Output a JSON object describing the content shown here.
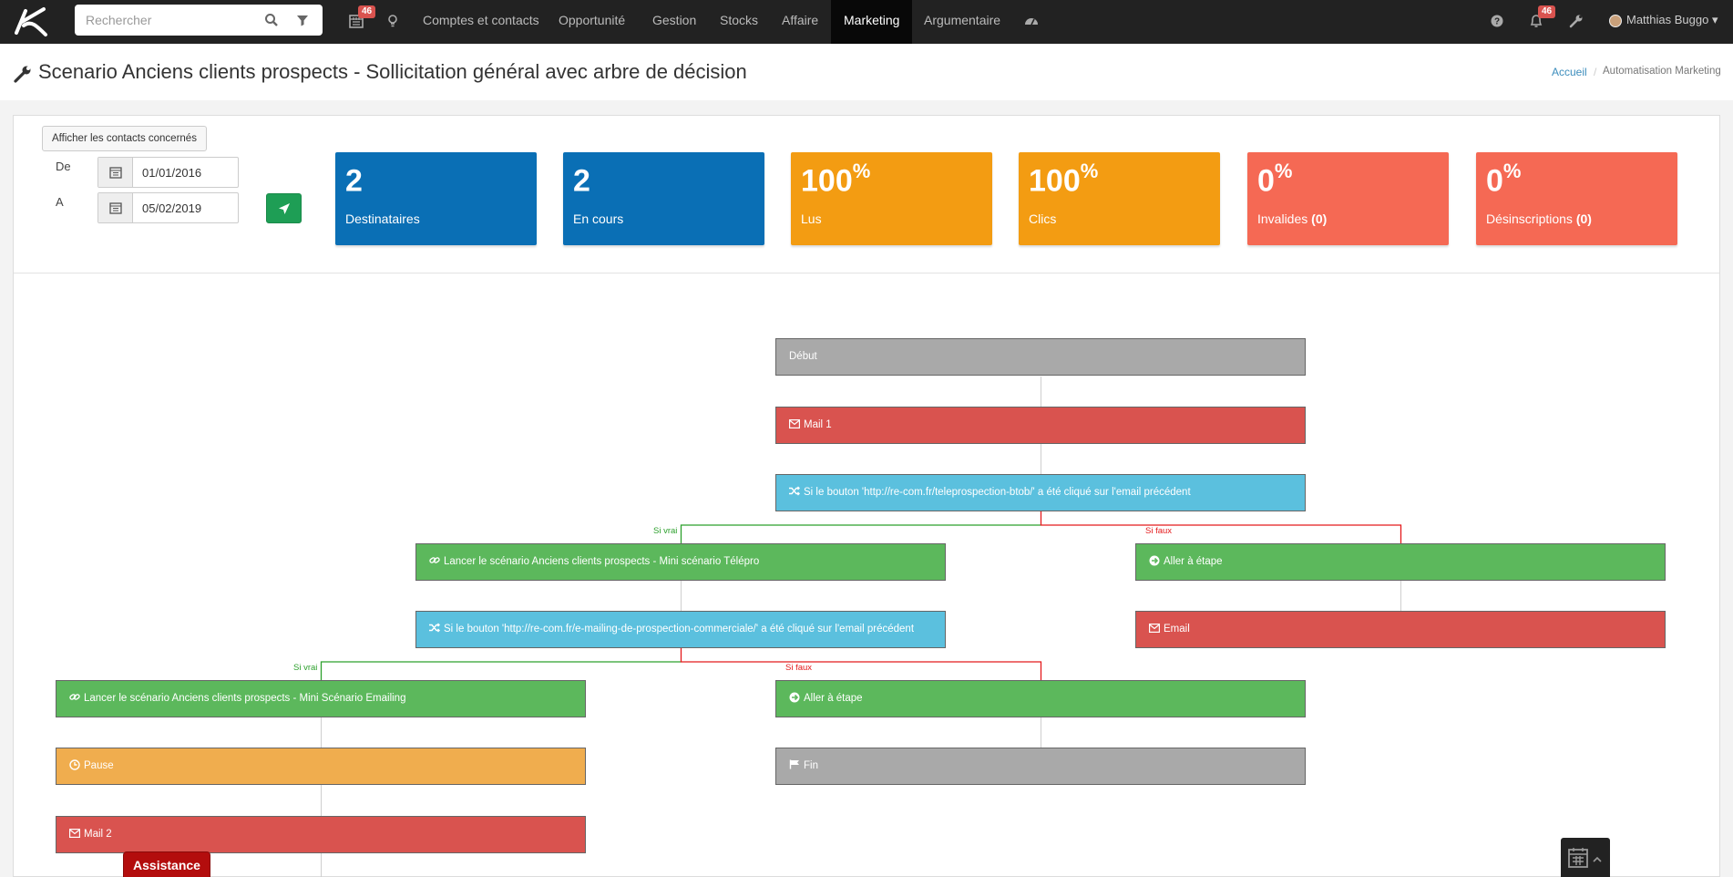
{
  "navbar": {
    "search_placeholder": "Rechercher",
    "calendar_badge": "46",
    "notifications_badge": "46",
    "menu": [
      "Comptes et contacts",
      "Opportunité",
      "Gestion",
      "Stocks",
      "Affaire",
      "Marketing",
      "Argumentaire"
    ],
    "active_menu": "Marketing",
    "user_name": "Matthias Buggo"
  },
  "header": {
    "title": "Scenario Anciens clients prospects - Sollicitation général avec arbre de décision",
    "breadcrumb": [
      "Accueil",
      "Automatisation Marketing"
    ]
  },
  "filters": {
    "show_contacts_label": "Afficher les contacts concernés",
    "from_label": "De",
    "to_label": "A",
    "from_date": "01/01/2016",
    "to_date": "05/02/2019"
  },
  "stats": [
    {
      "value": "2",
      "suffix": "",
      "label": "Destinataires",
      "count": "",
      "color": "#0a6fb5"
    },
    {
      "value": "2",
      "suffix": "",
      "label": "En cours",
      "count": "",
      "color": "#0a6fb5"
    },
    {
      "value": "100",
      "suffix": "%",
      "label": "Lus",
      "count": "",
      "color": "#f39c12"
    },
    {
      "value": "100",
      "suffix": "%",
      "label": "Clics",
      "count": "",
      "color": "#f39c12"
    },
    {
      "value": "0",
      "suffix": "%",
      "label": "Invalides",
      "count": "(0)",
      "color": "#f56954"
    },
    {
      "value": "0",
      "suffix": "%",
      "label": "Désinscriptions",
      "count": "(0)",
      "color": "#f56954"
    }
  ],
  "flow": {
    "nodes": {
      "debut": {
        "label": "Début",
        "icon": ""
      },
      "mail1": {
        "label": "Mail 1",
        "icon": "envelope-icon"
      },
      "cond1": {
        "label": "Si le bouton 'http://re-com.fr/teleprospection-btob/' a été cliqué sur l'email précédent",
        "icon": "shuffle-icon"
      },
      "launch1": {
        "label": "Lancer le scénario Anciens clients prospects - Mini scénario Télépro",
        "icon": "link-icon"
      },
      "goto1": {
        "label": "Aller à étape",
        "icon": "arrow-circle-icon"
      },
      "cond2": {
        "label": "Si le bouton 'http://re-com.fr/e-mailing-de-prospection-commerciale/' a été cliqué sur l'email précédent",
        "icon": "shuffle-icon"
      },
      "email": {
        "label": "Email",
        "icon": "envelope-icon"
      },
      "launch2": {
        "label": "Lancer le scénario Anciens clients prospects - Mini Scénario Emailing",
        "icon": "link-icon"
      },
      "goto2": {
        "label": "Aller à étape",
        "icon": "arrow-circle-icon"
      },
      "pause": {
        "label": "Pause",
        "icon": "clock-icon"
      },
      "fin": {
        "label": "Fin",
        "icon": "flag-icon"
      },
      "mail2": {
        "label": "Mail 2",
        "icon": "envelope-icon"
      }
    },
    "branch_true": "Si vrai",
    "branch_false": "Si faux"
  },
  "assistance_label": "Assistance",
  "colors": {
    "true_branch": "#2ca02c",
    "false_branch": "#e41a1c",
    "navbar": "#222222"
  }
}
